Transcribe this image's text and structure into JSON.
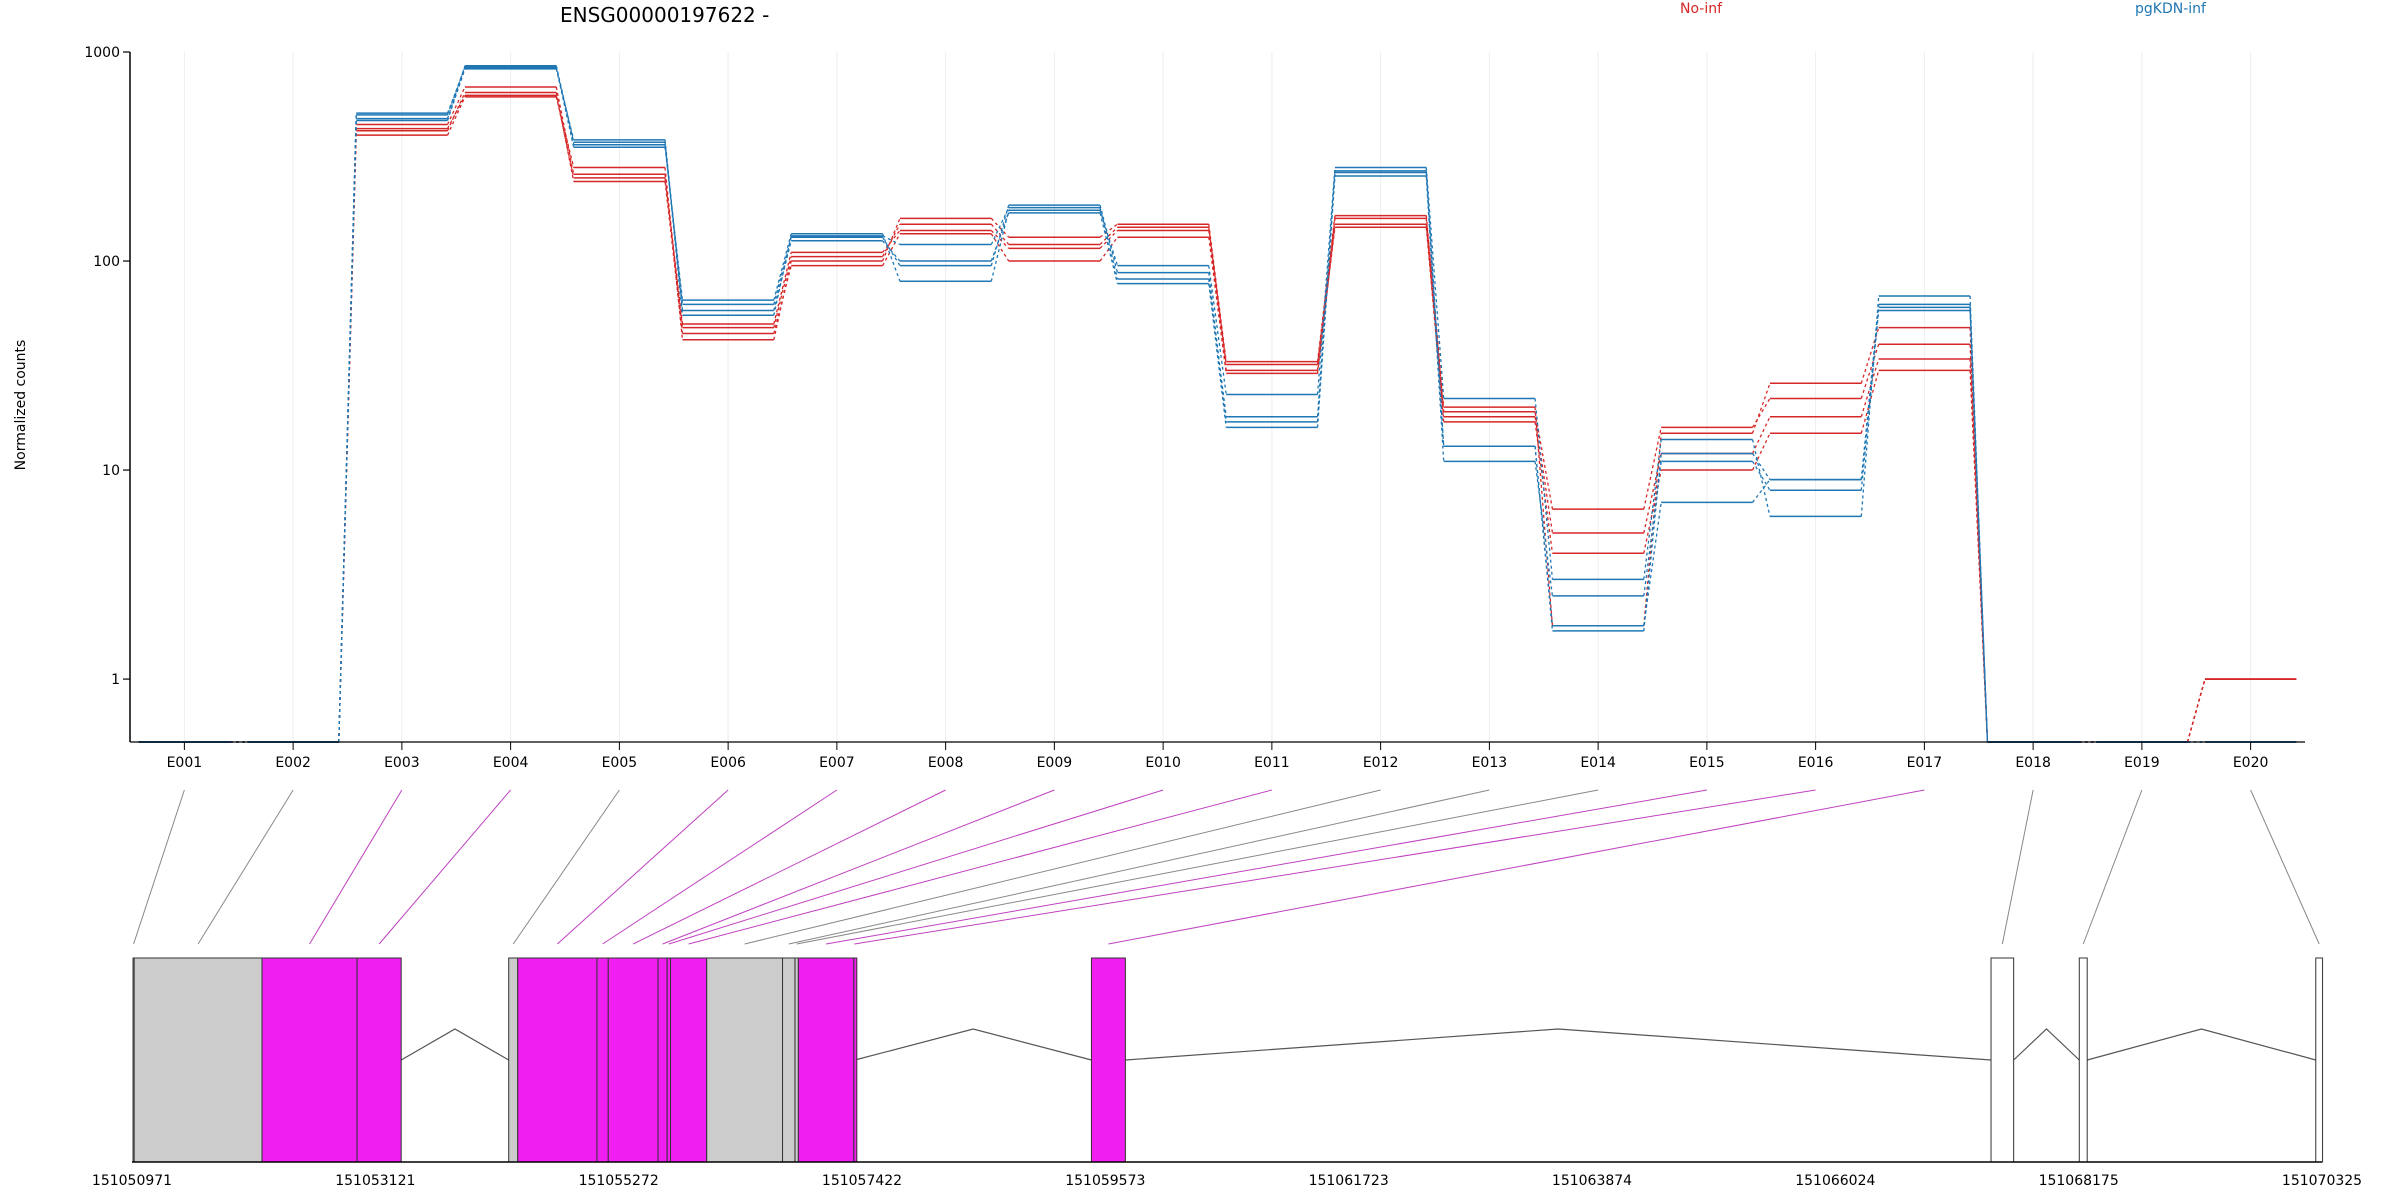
{
  "chart_data": {
    "type": "line",
    "title": "ENSG00000197622 -",
    "ylabel": "Normalized counts",
    "yscale": "log",
    "ylim": [
      0.5,
      1000
    ],
    "yticks": [
      1,
      10,
      100,
      1000
    ],
    "ytick_labels": [
      "1",
      "10",
      "100",
      "1000"
    ],
    "grid": "vertical-light",
    "legend_placement": "top-right",
    "categories": [
      "E001",
      "E002",
      "E003",
      "E004",
      "E005",
      "E006",
      "E007",
      "E008",
      "E009",
      "E010",
      "E011",
      "E012",
      "E013",
      "E014",
      "E015",
      "E016",
      "E017",
      "E018",
      "E019",
      "E020"
    ],
    "series": [
      {
        "name": "No-inf",
        "color": "#d62728",
        "values": [
          0.5,
          0.5,
          450,
          680,
          260,
          48,
          105,
          150,
          120,
          145,
          32,
          160,
          19,
          6.5,
          16,
          22,
          40,
          0.5,
          0.5,
          1.0
        ]
      },
      {
        "color": "#d62728",
        "values": [
          0.5,
          0.5,
          420,
          640,
          240,
          45,
          95,
          135,
          100,
          130,
          29,
          150,
          18,
          5,
          12,
          18,
          34,
          0.5,
          0.5,
          1.0
        ]
      },
      {
        "color": "#d62728",
        "values": [
          0.5,
          0.5,
          400,
          610,
          280,
          42,
          100,
          160,
          130,
          150,
          33,
          165,
          20,
          1.8,
          15,
          26,
          48,
          0.5,
          0.5,
          1.0
        ]
      },
      {
        "color": "#d62728",
        "values": [
          0.5,
          0.5,
          430,
          620,
          250,
          50,
          110,
          140,
          115,
          140,
          30,
          145,
          17,
          4,
          10,
          15,
          30,
          0.5,
          0.5,
          1.0
        ]
      },
      {
        "name": "pgKDN-inf",
        "color": "#1f77b4",
        "values": [
          0.5,
          0.5,
          500,
          850,
          360,
          62,
          130,
          95,
          185,
          88,
          17,
          270,
          13,
          1.7,
          12,
          9,
          62,
          0.5,
          0.5,
          0.5
        ]
      },
      {
        "color": "#1f77b4",
        "values": [
          0.5,
          0.5,
          470,
          830,
          380,
          58,
          125,
          100,
          170,
          78,
          16,
          255,
          11,
          2.5,
          11,
          8,
          58,
          0.5,
          0.5,
          0.5
        ]
      },
      {
        "color": "#1f77b4",
        "values": [
          0.5,
          0.5,
          510,
          840,
          350,
          65,
          135,
          80,
          175,
          95,
          23,
          280,
          22,
          3,
          14,
          6,
          68,
          0.5,
          0.5,
          0.5
        ]
      },
      {
        "color": "#1f77b4",
        "values": [
          0.5,
          0.5,
          480,
          860,
          370,
          55,
          132,
          120,
          180,
          82,
          18,
          265,
          13,
          1.8,
          7,
          9,
          60,
          0.5,
          0.5,
          0.5
        ]
      }
    ],
    "gene_model": {
      "coord_ticks": [
        "151050971",
        "151053121",
        "151055272",
        "151057422",
        "151059573",
        "151061723",
        "151063874",
        "151066024",
        "151068175",
        "151070325"
      ],
      "coord_range": [
        151050971,
        151070325
      ],
      "exons": [
        {
          "id": "E001",
          "start": 151050980,
          "end": 151050990,
          "fill": "#cccccc"
        },
        {
          "id": "E002",
          "start": 151050990,
          "end": 151052120,
          "fill": "#cccccc"
        },
        {
          "id": "E003",
          "start": 151052120,
          "end": 151052960,
          "fill": "#f01ef0"
        },
        {
          "id": "E004",
          "start": 151052960,
          "end": 151053350,
          "fill": "#f01ef0"
        },
        {
          "id": "E005",
          "start": 151054300,
          "end": 151054380,
          "fill": "#cccccc"
        },
        {
          "id": "E006",
          "start": 151054380,
          "end": 151055080,
          "fill": "#f01ef0"
        },
        {
          "id": "E007",
          "start": 151055080,
          "end": 151055180,
          "fill": "#f01ef0"
        },
        {
          "id": "E008",
          "start": 151055180,
          "end": 151055620,
          "fill": "#f01ef0"
        },
        {
          "id": "E009",
          "start": 151055620,
          "end": 151055700,
          "fill": "#f01ef0"
        },
        {
          "id": "E010",
          "start": 151055700,
          "end": 151055730,
          "fill": "#f01ef0"
        },
        {
          "id": "E011",
          "start": 151055730,
          "end": 151056050,
          "fill": "#f01ef0"
        },
        {
          "id": "E012",
          "start": 151056050,
          "end": 151056720,
          "fill": "#cccccc"
        },
        {
          "id": "E013",
          "start": 151056720,
          "end": 151056830,
          "fill": "#cccccc"
        },
        {
          "id": "E014",
          "start": 151056830,
          "end": 151056860,
          "fill": "#cccccc"
        },
        {
          "id": "E015",
          "start": 151056860,
          "end": 151057350,
          "fill": "#f01ef0"
        },
        {
          "id": "E016",
          "start": 151057350,
          "end": 151057360,
          "fill": "#f01ef0"
        },
        {
          "id": "E017",
          "start": 151059450,
          "end": 151059750,
          "fill": "#f01ef0"
        },
        {
          "id": "E018",
          "start": 151067400,
          "end": 151067600,
          "fill": "#ffffff"
        },
        {
          "id": "E019",
          "start": 151068180,
          "end": 151068250,
          "fill": "#ffffff"
        },
        {
          "id": "E020",
          "start": 151070270,
          "end": 151070330,
          "fill": "#ffffff"
        }
      ],
      "introns": [
        [
          151053350,
          151054300
        ],
        [
          151057360,
          151059450
        ],
        [
          151059750,
          151067400
        ],
        [
          151067600,
          151068180
        ],
        [
          151068250,
          151070270
        ]
      ],
      "link_highlight_color": "#c040c0",
      "link_plain_color": "#888888"
    }
  }
}
